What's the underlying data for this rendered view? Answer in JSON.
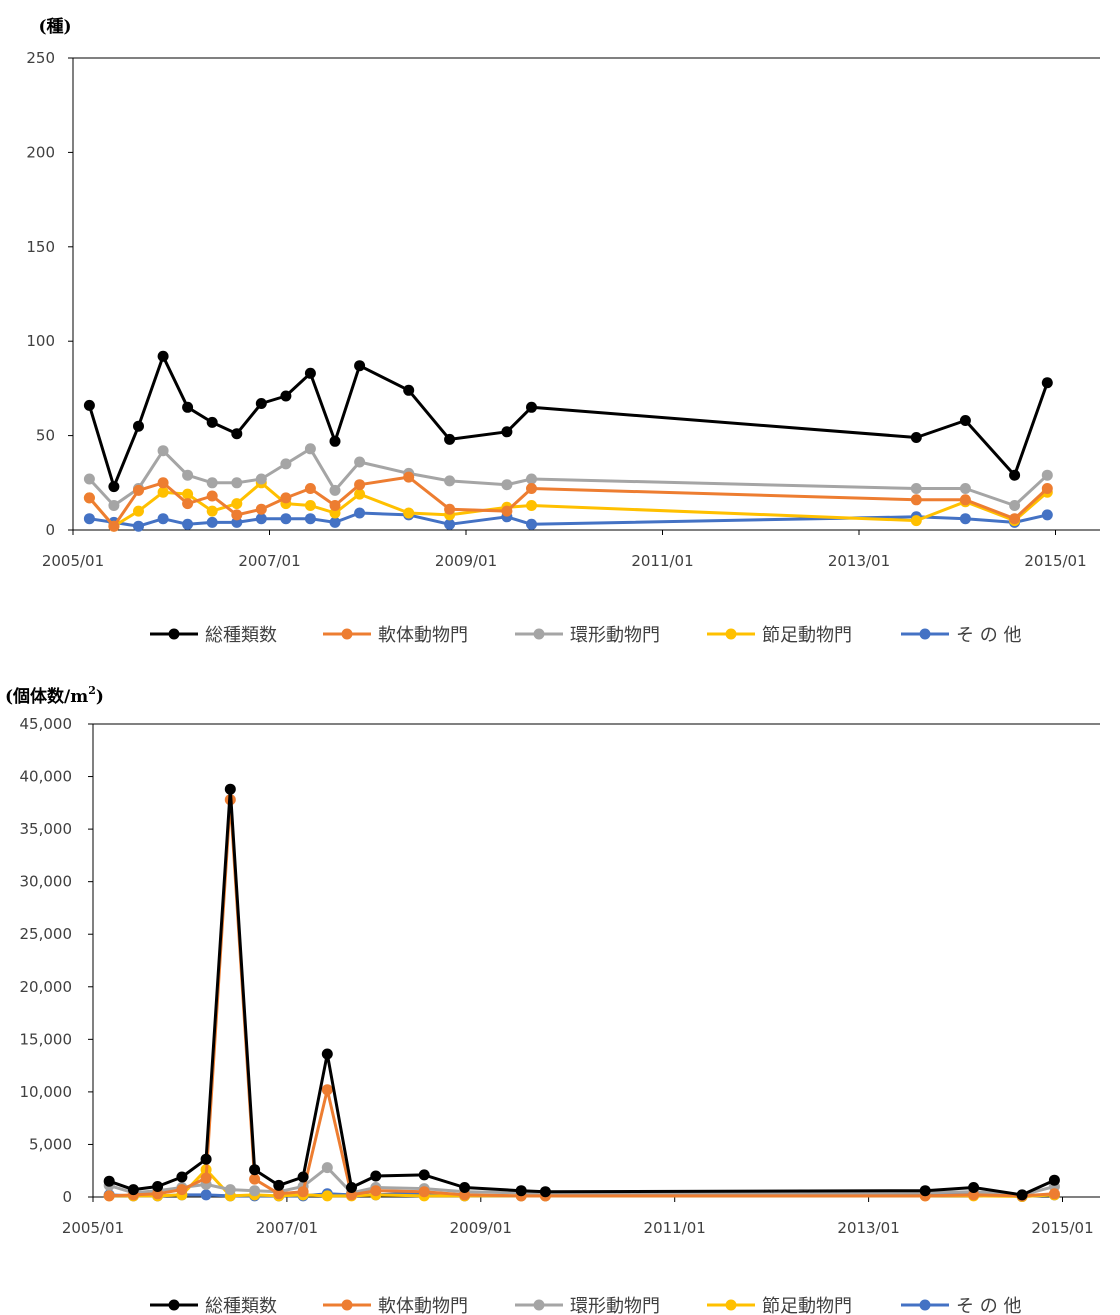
{
  "chart_data": [
    {
      "type": "line",
      "ylabel": "(種)",
      "ylim": [
        0,
        250
      ],
      "yticks": [
        0,
        50,
        100,
        150,
        200,
        250
      ],
      "ytick_labels": [
        "0",
        "50",
        "100",
        "150",
        "200",
        "250"
      ],
      "xtick_labels": [
        "2005/01",
        "2007/01",
        "2009/01",
        "2011/01",
        "2013/01",
        "2015/01"
      ],
      "grid": false,
      "legend_position": "bottom",
      "x": [
        "2005/03",
        "2005/06",
        "2005/09",
        "2005/12",
        "2006/03",
        "2006/06",
        "2006/09",
        "2006/12",
        "2007/03",
        "2007/06",
        "2007/09",
        "2007/12",
        "2008/06",
        "2008/11",
        "2009/06",
        "2009/09",
        "2013/08",
        "2014/02",
        "2014/08",
        "2014/12"
      ],
      "series": [
        {
          "name": "総種類数",
          "color": "#000000",
          "values": [
            66,
            23,
            55,
            92,
            65,
            57,
            51,
            67,
            71,
            83,
            47,
            87,
            74,
            48,
            52,
            65,
            49,
            58,
            29,
            78
          ]
        },
        {
          "name": "軟体動物門",
          "color": "#ED7D31",
          "values": [
            17,
            2,
            21,
            25,
            14,
            18,
            8,
            11,
            17,
            22,
            13,
            24,
            28,
            11,
            10,
            22,
            16,
            16,
            6,
            22
          ]
        },
        {
          "name": "環形動物門",
          "color": "#A5A5A5",
          "values": [
            27,
            13,
            22,
            42,
            29,
            25,
            25,
            27,
            35,
            43,
            21,
            36,
            30,
            26,
            24,
            27,
            22,
            22,
            13,
            29
          ]
        },
        {
          "name": "節足動物門",
          "color": "#FFC000",
          "values": [
            17,
            2,
            10,
            20,
            19,
            10,
            14,
            25,
            14,
            13,
            9,
            19,
            9,
            8,
            12,
            13,
            5,
            15,
            5,
            20
          ]
        },
        {
          "name": "そ の 他",
          "color": "#4472C4",
          "values": [
            6,
            4,
            2,
            6,
            3,
            4,
            4,
            6,
            6,
            6,
            4,
            9,
            8,
            3,
            7,
            3,
            7,
            6,
            4,
            8
          ]
        }
      ]
    },
    {
      "type": "line",
      "ylabel": "(個体数/m",
      "ylabel_sup": "2",
      "ylabel_end": ")",
      "ylim": [
        0,
        45000
      ],
      "yticks": [
        0,
        5000,
        10000,
        15000,
        20000,
        25000,
        30000,
        35000,
        40000,
        45000
      ],
      "ytick_labels": [
        "0",
        "5,000",
        "10,000",
        "15,000",
        "20,000",
        "25,000",
        "30,000",
        "35,000",
        "40,000",
        "45,000"
      ],
      "xtick_labels": [
        "2005/01",
        "2007/01",
        "2009/01",
        "2011/01",
        "2013/01",
        "2015/01"
      ],
      "grid": false,
      "legend_position": "bottom",
      "x": [
        "2005/03",
        "2005/06",
        "2005/09",
        "2005/12",
        "2006/03",
        "2006/06",
        "2006/09",
        "2006/12",
        "2007/03",
        "2007/06",
        "2007/09",
        "2007/12",
        "2008/06",
        "2008/11",
        "2009/06",
        "2009/09",
        "2013/08",
        "2014/02",
        "2014/08",
        "2014/12"
      ],
      "series": [
        {
          "name": "総種類数",
          "color": "#000000",
          "values": [
            1500,
            700,
            1000,
            1900,
            3600,
            38800,
            2600,
            1100,
            1900,
            13600,
            900,
            2000,
            2100,
            900,
            600,
            500,
            600,
            900,
            200,
            1600
          ]
        },
        {
          "name": "軟体動物門",
          "color": "#ED7D31",
          "values": [
            100,
            200,
            300,
            700,
            1800,
            37800,
            1700,
            300,
            500,
            10200,
            200,
            600,
            500,
            200,
            100,
            100,
            100,
            200,
            100,
            300
          ]
        },
        {
          "name": "環形動物門",
          "color": "#A5A5A5",
          "values": [
            1100,
            400,
            600,
            900,
            1200,
            700,
            600,
            500,
            1000,
            2800,
            400,
            900,
            800,
            500,
            400,
            300,
            400,
            500,
            200,
            1000
          ]
        },
        {
          "name": "節足動物門",
          "color": "#FFC000",
          "values": [
            100,
            100,
            100,
            200,
            2600,
            100,
            200,
            100,
            200,
            100,
            100,
            200,
            100,
            100,
            100,
            100,
            100,
            100,
            50,
            200
          ]
        },
        {
          "name": "そ の 他",
          "color": "#4472C4",
          "values": [
            200,
            100,
            100,
            200,
            200,
            100,
            100,
            100,
            100,
            300,
            200,
            200,
            400,
            100,
            100,
            100,
            200,
            300,
            50,
            200
          ]
        }
      ]
    }
  ]
}
